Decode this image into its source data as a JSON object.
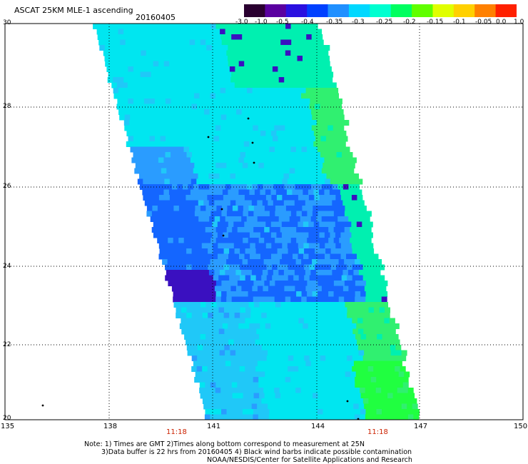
{
  "header": {
    "title": "ASCAT 25KM MLE-1 ascending",
    "date": "20160405"
  },
  "colorbar": {
    "labels": [
      "-3.0",
      "-1.0",
      "-0.5",
      "-0.4",
      "-0.35",
      "-0.3",
      "-0.25",
      "-0.2",
      "-0.15",
      "-0.1",
      "-0.05",
      "0.0",
      "1.0"
    ],
    "colors": [
      "#2a0030",
      "#5a00a0",
      "#2a10e0",
      "#0040ff",
      "#2090ff",
      "#00d8ff",
      "#00ffd0",
      "#00ff60",
      "#60ff00",
      "#e0ff00",
      "#ffd000",
      "#ff8000",
      "#ff2000"
    ]
  },
  "axes": {
    "lat_labels": [
      "30",
      "28",
      "26",
      "24",
      "22",
      "20"
    ],
    "lon_labels": [
      "135",
      "138",
      "141",
      "144",
      "147",
      "150"
    ],
    "grid": true
  },
  "time_labels": [
    "11:18",
    "11:18"
  ],
  "notes": {
    "line1": "Note: 1) Times are GMT 2)Times along bottom correspond to measurement at 25N",
    "line2": "3)Data buffer is 22 hrs from 20160405 4) Black wind barbs indicate possible contamination",
    "line3": "NOAA/NESDIS/Center for Satellite Applications and Research"
  },
  "map": {
    "swath_palette": [
      "#00e6f0",
      "#20c8f8",
      "#2a9cff",
      "#1466ff",
      "#0a2ee8",
      "#3a10c0",
      "#00f0b0",
      "#30f070",
      "#20ff40"
    ]
  }
}
